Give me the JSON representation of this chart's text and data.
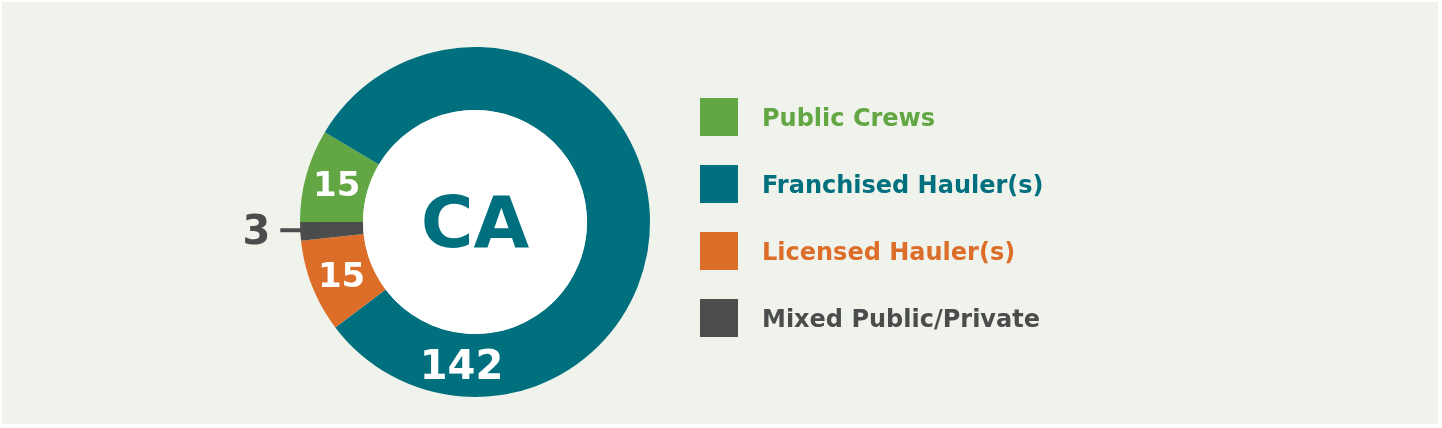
{
  "chart_data": {
    "type": "donut",
    "categories": [
      "Public Crews",
      "Franchised Hauler(s)",
      "Licensed Hauler(s)",
      "Mixed Public/Private"
    ],
    "values": [
      15,
      142,
      15,
      3
    ],
    "colors": [
      "#62a744",
      "#00707f",
      "#dc6e2a",
      "#4a4d4c"
    ],
    "data_labels": true,
    "legend": "right",
    "annotations": [
      "CA"
    ]
  }
}
